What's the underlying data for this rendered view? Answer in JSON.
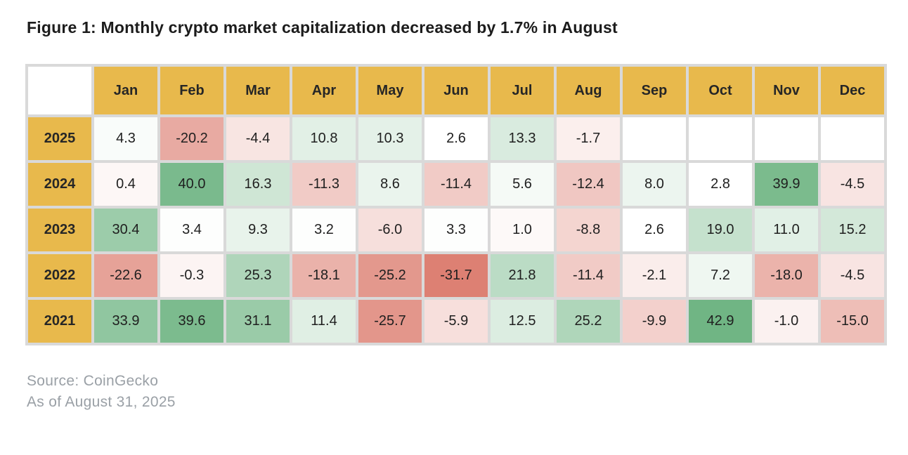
{
  "title": "Figure 1: Monthly crypto market capitalization decreased by 1.7% in August",
  "footer": {
    "source": "Source: CoinGecko",
    "as_of": "As of August 31, 2025"
  },
  "colors": {
    "header_bg": "#E8B94C",
    "header_text": "#262626",
    "cell_text": "#1f1f1f",
    "grid": "#d9d9d9",
    "positive_max": "#70B584",
    "negative_max": "#DD8073",
    "neutral": "#FFFFFF",
    "title_text": "#1c1c1c",
    "footer_text": "#9aa0a6"
  },
  "chart_data": {
    "type": "heatmap",
    "title": "Monthly crypto market capitalization % change",
    "unit": "%",
    "columns": [
      "Jan",
      "Feb",
      "Mar",
      "Apr",
      "May",
      "Jun",
      "Jul",
      "Aug",
      "Sep",
      "Oct",
      "Nov",
      "Dec"
    ],
    "rows": [
      "2025",
      "2024",
      "2023",
      "2022",
      "2021"
    ],
    "values": [
      [
        4.3,
        -20.2,
        -4.4,
        10.8,
        10.3,
        2.6,
        13.3,
        -1.7,
        null,
        null,
        null,
        null
      ],
      [
        0.4,
        40.0,
        16.3,
        -11.3,
        8.6,
        -11.4,
        5.6,
        -12.4,
        8.0,
        2.8,
        39.9,
        -4.5
      ],
      [
        30.4,
        3.4,
        9.3,
        3.2,
        -6.0,
        3.3,
        1.0,
        -8.8,
        2.6,
        19.0,
        11.0,
        15.2
      ],
      [
        -22.6,
        -0.3,
        25.3,
        -18.1,
        -25.2,
        -31.7,
        21.8,
        -11.4,
        -2.1,
        7.2,
        -18.0,
        -4.5
      ],
      [
        33.9,
        39.6,
        31.1,
        11.4,
        -25.7,
        -5.9,
        12.5,
        25.2,
        -9.9,
        42.9,
        -1.0,
        -15.0
      ]
    ],
    "color_scale": {
      "min": -31.7,
      "mid": 2.7,
      "max": 42.9
    },
    "legend_position": "none",
    "grid": true
  }
}
